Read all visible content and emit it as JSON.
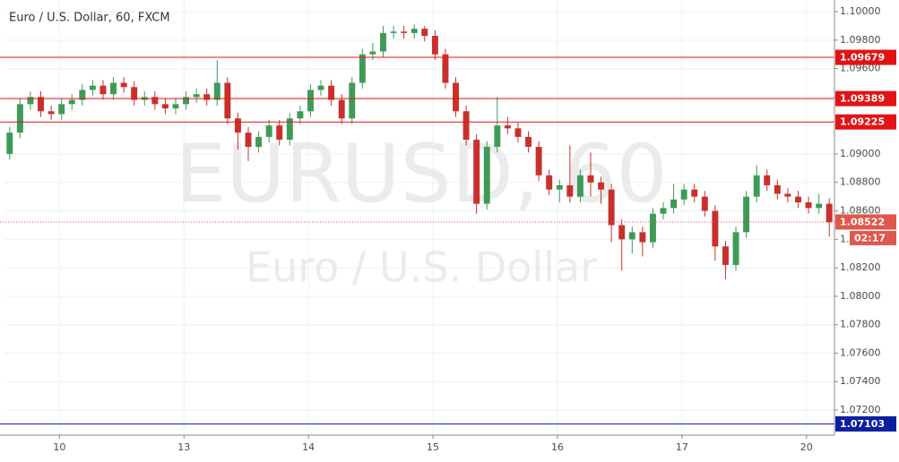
{
  "chart_data": {
    "type": "candlestick",
    "title": "Euro / U.S. Dollar, 60, FXCM",
    "watermark": "EURUSD, 60",
    "watermark_subtitle": "Euro / U.S. Dollar",
    "up_color": "#3e9b57",
    "down_color": "#c9302c",
    "grid": true,
    "xlim": [
      -0.5,
      79.5
    ],
    "xticks": [
      {
        "value": 4.8,
        "label": "10"
      },
      {
        "value": 16.8,
        "label": "13"
      },
      {
        "value": 28.8,
        "label": "14"
      },
      {
        "value": 40.8,
        "label": "15"
      },
      {
        "value": 52.8,
        "label": "16"
      },
      {
        "value": 64.8,
        "label": "17"
      },
      {
        "value": 76.8,
        "label": "20"
      }
    ],
    "ylim": [
      1.07024,
      1.10082
    ],
    "yticks": [
      {
        "value": 1.1,
        "label": "1.10000"
      },
      {
        "value": 1.098,
        "label": "1.09800"
      },
      {
        "value": 1.096,
        "label": "1.09600"
      },
      {
        "value": 1.094,
        "label": "1.09400"
      },
      {
        "value": 1.092,
        "label": "1.09200"
      },
      {
        "value": 1.09,
        "label": "1.09000"
      },
      {
        "value": 1.088,
        "label": "1.08800"
      },
      {
        "value": 1.086,
        "label": "1.08600"
      },
      {
        "value": 1.084,
        "label": "1.08400"
      },
      {
        "value": 1.082,
        "label": "1.08200"
      },
      {
        "value": 1.08,
        "label": "1.08000"
      },
      {
        "value": 1.078,
        "label": "1.07800"
      },
      {
        "value": 1.076,
        "label": "1.07600"
      },
      {
        "value": 1.074,
        "label": "1.07400"
      },
      {
        "value": 1.072,
        "label": "1.07200"
      }
    ],
    "open": [
      1.09,
      1.0915,
      1.0935,
      1.094,
      1.093,
      1.0928,
      1.0935,
      1.0938,
      1.0945,
      1.0948,
      1.0942,
      1.095,
      1.0947,
      1.0938,
      1.094,
      1.0935,
      1.0932,
      1.0935,
      1.094,
      1.0942,
      1.0938,
      1.095,
      1.0925,
      1.0915,
      1.0905,
      1.0912,
      1.092,
      1.091,
      1.0925,
      1.093,
      1.0945,
      1.0948,
      1.0938,
      1.0925,
      1.095,
      1.097,
      1.0972,
      1.0985,
      1.0986,
      1.0985,
      1.0988,
      1.0983,
      1.097,
      1.095,
      1.093,
      1.091,
      1.0865,
      1.0905,
      1.092,
      1.0918,
      1.0912,
      1.0905,
      1.0885,
      1.0875,
      1.0878,
      1.087,
      1.0885,
      1.088,
      1.0875,
      1.085,
      1.084,
      1.0845,
      1.0838,
      1.0858,
      1.0862,
      1.0868,
      1.0875,
      1.087,
      1.086,
      1.0835,
      1.0822,
      1.0845,
      1.087,
      1.0885,
      1.0878,
      1.0872,
      1.087,
      1.0866,
      1.0862,
      1.0865
    ],
    "high": [
      1.0919,
      1.0939,
      1.0944,
      1.0944,
      1.0934,
      1.0939,
      1.0942,
      1.0949,
      1.0952,
      1.0952,
      1.0954,
      1.0954,
      1.0951,
      1.0944,
      1.0944,
      1.0939,
      1.0939,
      1.0944,
      1.0946,
      1.0946,
      1.0966,
      1.0954,
      1.0929,
      1.0919,
      1.0916,
      1.0924,
      1.0924,
      1.0929,
      1.0934,
      1.0949,
      1.0952,
      1.0952,
      1.0942,
      1.0954,
      1.0974,
      1.0978,
      1.099,
      1.099,
      1.099,
      1.0991,
      1.099,
      1.0987,
      1.0974,
      1.0954,
      1.0934,
      1.0914,
      1.0909,
      1.094,
      1.0926,
      1.0922,
      1.0916,
      1.0909,
      1.0889,
      1.0882,
      1.0906,
      1.0889,
      1.0901,
      1.0884,
      1.0879,
      1.0854,
      1.0849,
      1.0849,
      1.0862,
      1.0866,
      1.0879,
      1.0879,
      1.0879,
      1.0874,
      1.0864,
      1.0839,
      1.0849,
      1.0874,
      1.0892,
      1.0889,
      1.0882,
      1.0876,
      1.0874,
      1.087,
      1.0872,
      1.0869
    ],
    "low": [
      1.0896,
      1.0911,
      1.0931,
      1.0926,
      1.0924,
      1.0924,
      1.0931,
      1.0934,
      1.0941,
      1.0938,
      1.0938,
      1.0943,
      1.0934,
      1.0934,
      1.0931,
      1.0928,
      1.0928,
      1.0931,
      1.0936,
      1.0934,
      1.0934,
      1.0921,
      1.0903,
      1.0895,
      1.0901,
      1.0908,
      1.0906,
      1.0906,
      1.0921,
      1.0926,
      1.0941,
      1.0934,
      1.0921,
      1.0921,
      1.0946,
      1.0966,
      1.0968,
      1.0981,
      1.0981,
      1.0981,
      1.0979,
      1.0966,
      1.0946,
      1.0926,
      1.0906,
      1.0858,
      1.0861,
      1.0901,
      1.0914,
      1.0908,
      1.0901,
      1.0881,
      1.0871,
      1.0866,
      1.0866,
      1.0866,
      1.087,
      1.0865,
      1.0838,
      1.0818,
      1.083,
      1.0828,
      1.0834,
      1.0854,
      1.0858,
      1.0864,
      1.0866,
      1.0856,
      1.0825,
      1.0812,
      1.0818,
      1.0841,
      1.0866,
      1.0874,
      1.0868,
      1.0866,
      1.0862,
      1.0858,
      1.0858,
      1.0842
    ],
    "close": [
      1.0915,
      1.0935,
      1.094,
      1.093,
      1.0928,
      1.0935,
      1.0938,
      1.0945,
      1.0948,
      1.0942,
      1.095,
      1.0947,
      1.0938,
      1.094,
      1.0935,
      1.0932,
      1.0935,
      1.094,
      1.0942,
      1.0938,
      1.095,
      1.0925,
      1.0915,
      1.0905,
      1.0912,
      1.092,
      1.091,
      1.0925,
      1.093,
      1.0945,
      1.0948,
      1.0938,
      1.0925,
      1.095,
      1.097,
      1.0972,
      1.0985,
      1.0986,
      1.0985,
      1.0988,
      1.0983,
      1.097,
      1.095,
      1.093,
      1.091,
      1.0865,
      1.0905,
      1.092,
      1.0918,
      1.0912,
      1.0905,
      1.0885,
      1.0875,
      1.0878,
      1.087,
      1.0885,
      1.088,
      1.0875,
      1.085,
      1.084,
      1.0845,
      1.0838,
      1.0858,
      1.0862,
      1.0868,
      1.0875,
      1.087,
      1.086,
      1.0835,
      1.0822,
      1.0845,
      1.087,
      1.0885,
      1.0878,
      1.0872,
      1.087,
      1.0866,
      1.0862,
      1.0865,
      1.0852
    ],
    "levels": [
      {
        "value": 1.09679,
        "color": "#e01414"
      },
      {
        "value": 1.09389,
        "color": "#e01414"
      },
      {
        "value": 1.09225,
        "color": "#e01414"
      },
      {
        "value": 1.07103,
        "color": "#0c1f9e"
      }
    ],
    "current": {
      "value": 1.08522,
      "countdown": "02:17",
      "color": "#e0574d"
    }
  }
}
